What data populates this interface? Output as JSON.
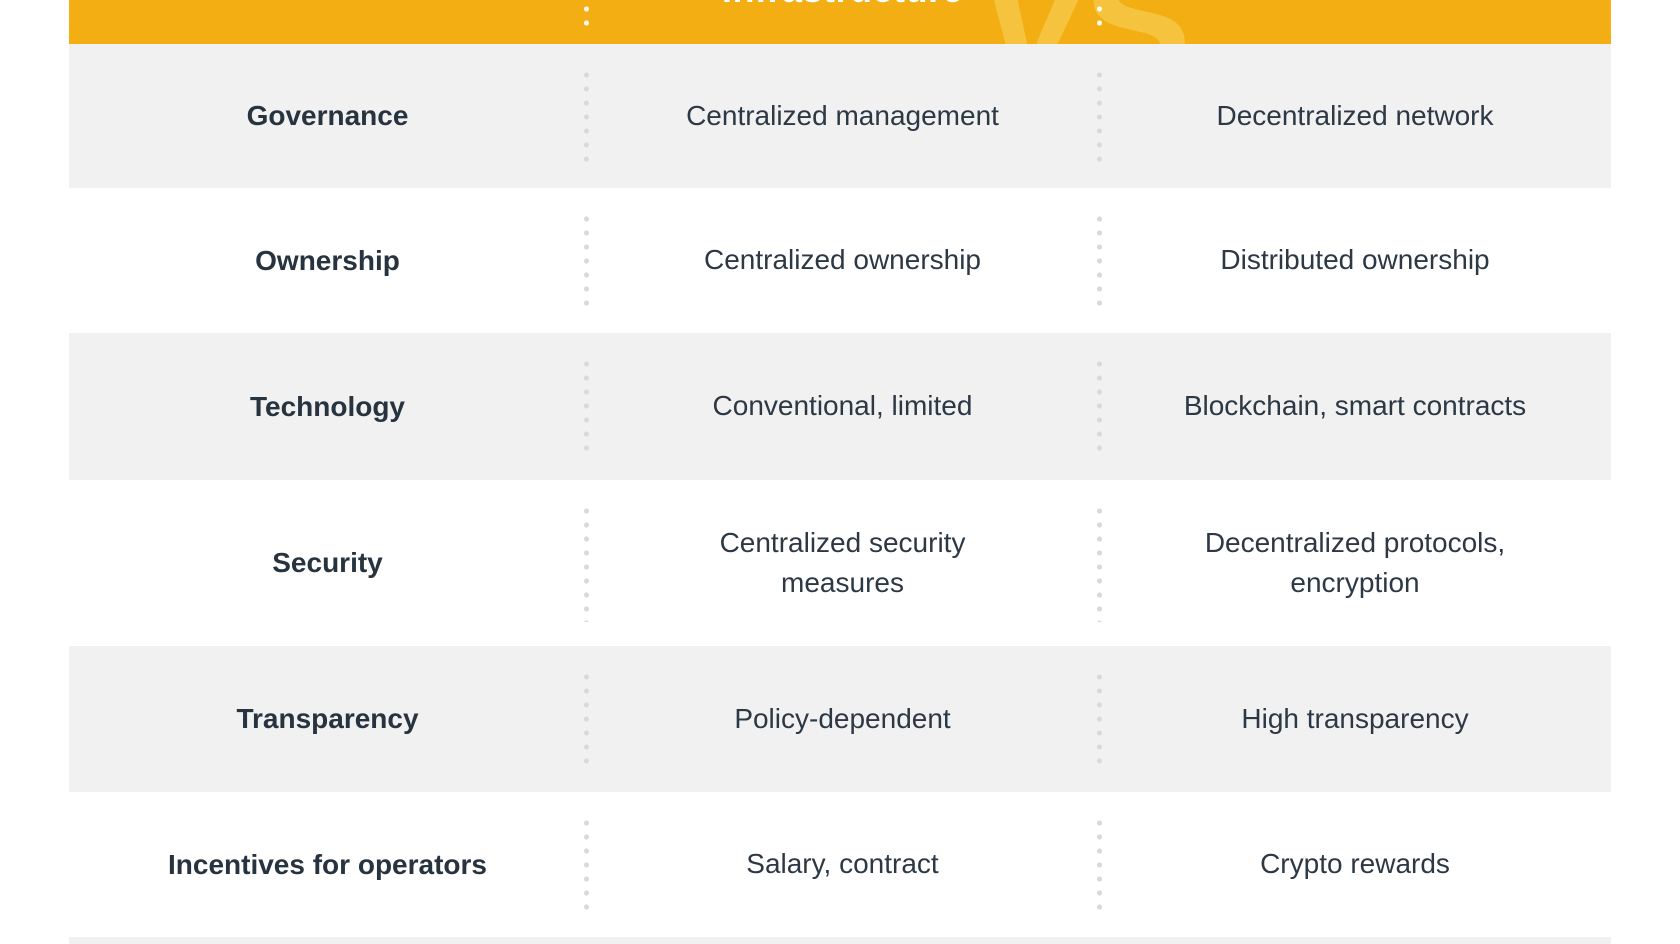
{
  "header": {
    "partial_column_title": "Infrastructure",
    "watermark": "VS"
  },
  "table": {
    "rows": [
      {
        "label": "Governance",
        "centralized": "Centralized management",
        "decentralized": "Decentralized network"
      },
      {
        "label": "Ownership",
        "centralized": "Centralized ownership",
        "decentralized": "Distributed ownership"
      },
      {
        "label": "Technology",
        "centralized": "Conventional, limited",
        "decentralized": "Blockchain, smart contracts"
      },
      {
        "label": "Security",
        "centralized": "Centralized security measures",
        "decentralized": "Decentralized protocols, encryption"
      },
      {
        "label": "Transparency",
        "centralized": "Policy-dependent",
        "decentralized": "High transparency"
      },
      {
        "label": "Incentives for operators",
        "centralized": "Salary, contract",
        "decentralized": "Crypto rewards"
      }
    ]
  },
  "colors": {
    "header_background": "#F2AE12",
    "watermark": "#F6C33E",
    "header_text": "#FFFFFF",
    "stripe_row_background": "#F1F1F2",
    "text": "#2C3844",
    "separator_dots": "#D7DADD"
  }
}
